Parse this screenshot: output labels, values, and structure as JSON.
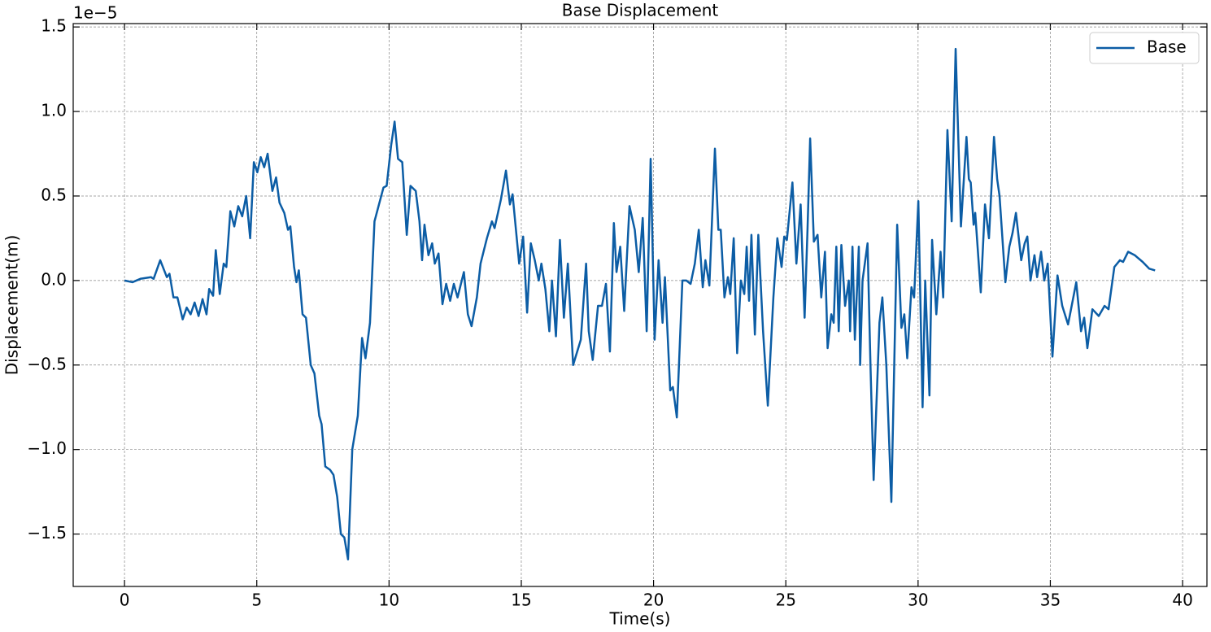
{
  "chart_data": {
    "type": "line",
    "title": "Base Displacement",
    "x_label": "Time(s)",
    "y_label": "Displacement(m)",
    "y_offset_label": "1e−5",
    "x": [
      0,
      0.3,
      0.6,
      1.0,
      1.1,
      1.35,
      1.6,
      1.7,
      1.85,
      2.0,
      2.2,
      2.35,
      2.5,
      2.65,
      2.8,
      2.95,
      3.1,
      3.2,
      3.35,
      3.45,
      3.6,
      3.75,
      3.85,
      4.0,
      4.15,
      4.3,
      4.45,
      4.6,
      4.75,
      4.89,
      5.02,
      5.15,
      5.28,
      5.41,
      5.59,
      5.73,
      5.86,
      6.04,
      6.18,
      6.27,
      6.41,
      6.5,
      6.59,
      6.73,
      6.86,
      7.04,
      7.18,
      7.36,
      7.45,
      7.59,
      7.77,
      7.9,
      8.04,
      8.18,
      8.31,
      8.45,
      8.61,
      8.82,
      8.98,
      9.11,
      9.28,
      9.45,
      9.62,
      9.79,
      9.91,
      10.08,
      10.21,
      10.34,
      10.5,
      10.67,
      10.81,
      11.01,
      11.15,
      11.25,
      11.34,
      11.49,
      11.63,
      11.73,
      11.87,
      12.02,
      12.16,
      12.31,
      12.45,
      12.59,
      12.83,
      12.98,
      13.12,
      13.32,
      13.46,
      13.7,
      13.89,
      13.99,
      14.23,
      14.42,
      14.57,
      14.67,
      14.92,
      15.07,
      15.22,
      15.36,
      15.51,
      15.66,
      15.76,
      15.91,
      16.06,
      16.16,
      16.31,
      16.46,
      16.61,
      16.76,
      16.96,
      17.25,
      17.45,
      17.55,
      17.7,
      17.9,
      18.05,
      18.2,
      18.35,
      18.5,
      18.6,
      18.74,
      18.89,
      19.09,
      19.29,
      19.44,
      19.59,
      19.74,
      19.89,
      20.04,
      20.19,
      20.34,
      20.43,
      20.63,
      20.73,
      20.88,
      21.09,
      21.24,
      21.4,
      21.56,
      21.71,
      21.86,
      21.96,
      22.11,
      22.32,
      22.45,
      22.54,
      22.68,
      22.81,
      22.9,
      23.03,
      23.16,
      23.3,
      23.43,
      23.52,
      23.61,
      23.7,
      23.83,
      23.96,
      24.14,
      24.32,
      24.53,
      24.68,
      24.84,
      24.94,
      25.04,
      25.25,
      25.4,
      25.56,
      25.71,
      25.82,
      25.92,
      26.06,
      26.2,
      26.34,
      26.48,
      26.58,
      26.72,
      26.81,
      26.91,
      27.0,
      27.1,
      27.24,
      27.38,
      27.43,
      27.52,
      27.61,
      27.76,
      27.81,
      27.9,
      28.09,
      28.2,
      28.32,
      28.54,
      28.65,
      28.8,
      28.99,
      29.21,
      29.37,
      29.48,
      29.59,
      29.75,
      29.85,
      30.01,
      30.17,
      30.27,
      30.43,
      30.53,
      30.69,
      30.85,
      30.95,
      31.11,
      31.27,
      31.42,
      31.62,
      31.83,
      31.92,
      31.99,
      32.1,
      32.16,
      32.37,
      32.53,
      32.68,
      32.87,
      32.99,
      33.08,
      33.3,
      33.45,
      33.57,
      33.7,
      33.9,
      34.03,
      34.13,
      34.25,
      34.4,
      34.5,
      34.65,
      34.77,
      34.9,
      35.08,
      35.27,
      35.45,
      35.67,
      35.98,
      36.16,
      36.28,
      36.4,
      36.59,
      36.83,
      37.05,
      37.2,
      37.42,
      37.63,
      37.75,
      37.94,
      38.19,
      38.49,
      38.74,
      38.96
    ],
    "series": [
      {
        "name": "Base",
        "color": "#0c5da5",
        "values": [
          0,
          -0.01,
          0.01,
          0.02,
          0.01,
          0.12,
          0.02,
          0.04,
          -0.1,
          -0.1,
          -0.23,
          -0.16,
          -0.2,
          -0.13,
          -0.21,
          -0.11,
          -0.2,
          -0.05,
          -0.09,
          0.18,
          -0.08,
          0.1,
          0.08,
          0.41,
          0.32,
          0.44,
          0.38,
          0.5,
          0.25,
          0.7,
          0.64,
          0.73,
          0.67,
          0.75,
          0.53,
          0.61,
          0.46,
          0.4,
          0.3,
          0.32,
          0.08,
          -0.01,
          0.06,
          -0.2,
          -0.22,
          -0.5,
          -0.55,
          -0.8,
          -0.85,
          -1.1,
          -1.12,
          -1.15,
          -1.28,
          -1.5,
          -1.52,
          -1.65,
          -1.0,
          -0.8,
          -0.34,
          -0.46,
          -0.25,
          0.35,
          0.45,
          0.55,
          0.56,
          0.8,
          0.94,
          0.72,
          0.7,
          0.27,
          0.56,
          0.53,
          0.35,
          0.12,
          0.33,
          0.15,
          0.22,
          0.1,
          0.16,
          -0.14,
          -0.02,
          -0.12,
          -0.02,
          -0.1,
          0.05,
          -0.2,
          -0.27,
          -0.1,
          0.1,
          0.25,
          0.35,
          0.31,
          0.48,
          0.65,
          0.45,
          0.51,
          0.1,
          0.26,
          -0.19,
          0.22,
          0.12,
          0.0,
          0.1,
          -0.05,
          -0.3,
          0.0,
          -0.33,
          0.24,
          -0.22,
          0.1,
          -0.5,
          -0.35,
          0.1,
          -0.3,
          -0.47,
          -0.15,
          -0.15,
          -0.02,
          -0.42,
          0.34,
          0.05,
          0.2,
          -0.18,
          0.44,
          0.3,
          0.05,
          0.37,
          -0.3,
          0.72,
          -0.35,
          0.12,
          -0.25,
          0.02,
          -0.65,
          -0.63,
          -0.81,
          0.0,
          0.0,
          -0.02,
          0.1,
          0.3,
          -0.04,
          0.12,
          -0.03,
          0.78,
          0.3,
          0.3,
          -0.1,
          0.02,
          -0.08,
          0.25,
          -0.43,
          0.0,
          -0.08,
          0.2,
          -0.12,
          0.27,
          -0.32,
          0.27,
          -0.3,
          -0.74,
          -0.1,
          0.25,
          0.08,
          0.26,
          0.24,
          0.58,
          0.1,
          0.45,
          -0.22,
          0.3,
          0.84,
          0.23,
          0.27,
          -0.1,
          0.17,
          -0.4,
          -0.2,
          -0.25,
          0.2,
          -0.3,
          0.21,
          -0.15,
          0.0,
          -0.3,
          0.2,
          -0.35,
          0.2,
          -0.5,
          0.0,
          0.22,
          -0.5,
          -1.18,
          -0.25,
          -0.1,
          -0.5,
          -1.31,
          0.33,
          -0.28,
          -0.2,
          -0.46,
          -0.04,
          -0.1,
          0.47,
          -0.75,
          0.0,
          -0.68,
          0.24,
          -0.2,
          0.17,
          -0.1,
          0.89,
          0.35,
          1.37,
          0.32,
          0.85,
          0.6,
          0.58,
          0.33,
          0.4,
          -0.07,
          0.45,
          0.25,
          0.85,
          0.6,
          0.5,
          -0.01,
          0.2,
          0.28,
          0.4,
          0.12,
          0.22,
          0.26,
          0.0,
          0.15,
          0.02,
          0.17,
          0.0,
          0.1,
          -0.45,
          0.03,
          -0.15,
          -0.26,
          -0.01,
          -0.3,
          -0.22,
          -0.4,
          -0.17,
          -0.21,
          -0.15,
          -0.17,
          0.08,
          0.12,
          0.11,
          0.17,
          0.15,
          0.11,
          0.07,
          0.06
        ]
      }
    ],
    "xlim": [
      -1.94,
      40.92
    ],
    "ylim": [
      -1.81,
      1.52
    ],
    "xticks": [
      0,
      5,
      10,
      15,
      20,
      25,
      30,
      35,
      40
    ],
    "yticks": [
      {
        "value": -1.5,
        "label": "−1.5"
      },
      {
        "value": -1.0,
        "label": "−1.0"
      },
      {
        "value": -0.5,
        "label": "−0.5"
      },
      {
        "value": 0.0,
        "label": "0.0"
      },
      {
        "value": 0.5,
        "label": "0.5"
      },
      {
        "value": 1.0,
        "label": "1.0"
      },
      {
        "value": 1.5,
        "label": "1.5"
      }
    ],
    "grid": true,
    "legend": "upper right"
  }
}
